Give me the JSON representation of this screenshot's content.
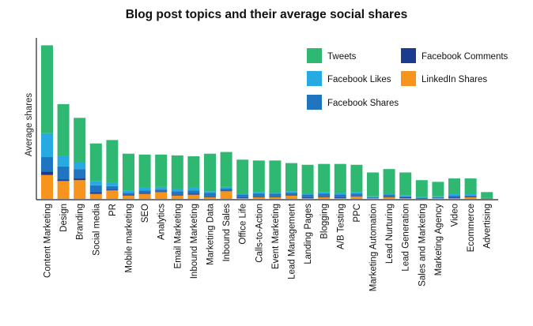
{
  "chart_data": {
    "type": "bar",
    "stacked": true,
    "title": "Blog post topics and their average social shares",
    "xlabel": "",
    "ylabel": "Average shares",
    "grid": false,
    "legend_position": "top-right",
    "categories": [
      "Content Marketing",
      "Design",
      "Branding",
      "Social media",
      "PR",
      "Mobile marketing",
      "SEO",
      "Analytics",
      "Email Marketing",
      "Inbound Marketing",
      "Marketing Data",
      "Inbound Sales",
      "Office Life",
      "Calls-to-Action",
      "Event Marketing",
      "Lead Management",
      "Landing Pages",
      "Blogging",
      "A/B Testing",
      "PPC",
      "Marketing Automation",
      "Lead Nurturing",
      "Lead Generation",
      "Sales and Marketing",
      "Marketing Agency",
      "Video",
      "Ecommerce",
      "Advertising"
    ],
    "series": [
      {
        "name": "LinkedIn Shares",
        "color": "#F7941D",
        "values": [
          28,
          21,
          22,
          6,
          10,
          4,
          6,
          8,
          4,
          5,
          2,
          9,
          1,
          2,
          2,
          4,
          1,
          2,
          1,
          3,
          1,
          2,
          1,
          0,
          1,
          1,
          2,
          0
        ]
      },
      {
        "name": "Facebook Comments",
        "color": "#1B3B8F",
        "values": [
          4,
          2,
          2,
          2,
          1,
          1,
          1,
          1,
          1,
          1,
          1,
          1,
          1,
          1,
          1,
          1,
          1,
          1,
          1,
          1,
          0,
          1,
          1,
          0,
          0,
          1,
          1,
          0
        ]
      },
      {
        "name": "Facebook Shares",
        "color": "#1F75C0",
        "values": [
          17,
          15,
          11,
          8,
          4,
          2,
          3,
          2,
          4,
          4,
          4,
          2,
          3,
          3,
          3,
          2,
          3,
          3,
          3,
          2,
          1,
          2,
          1,
          1,
          1,
          2,
          1,
          0
        ]
      },
      {
        "name": "Facebook Likes",
        "color": "#27AAE1",
        "values": [
          28,
          12,
          8,
          5,
          4,
          3,
          3,
          3,
          3,
          3,
          2,
          2,
          1,
          2,
          1,
          2,
          1,
          2,
          2,
          2,
          1,
          1,
          1,
          1,
          1,
          2,
          2,
          1
        ]
      },
      {
        "name": "Tweets",
        "color": "#2EB872",
        "values": [
          103,
          61,
          52,
          44,
          50,
          43,
          39,
          38,
          39,
          37,
          44,
          41,
          40,
          37,
          38,
          33,
          34,
          33,
          34,
          32,
          28,
          29,
          27,
          20,
          17,
          18,
          18,
          7
        ]
      }
    ],
    "ylim": [
      0,
      185
    ]
  }
}
